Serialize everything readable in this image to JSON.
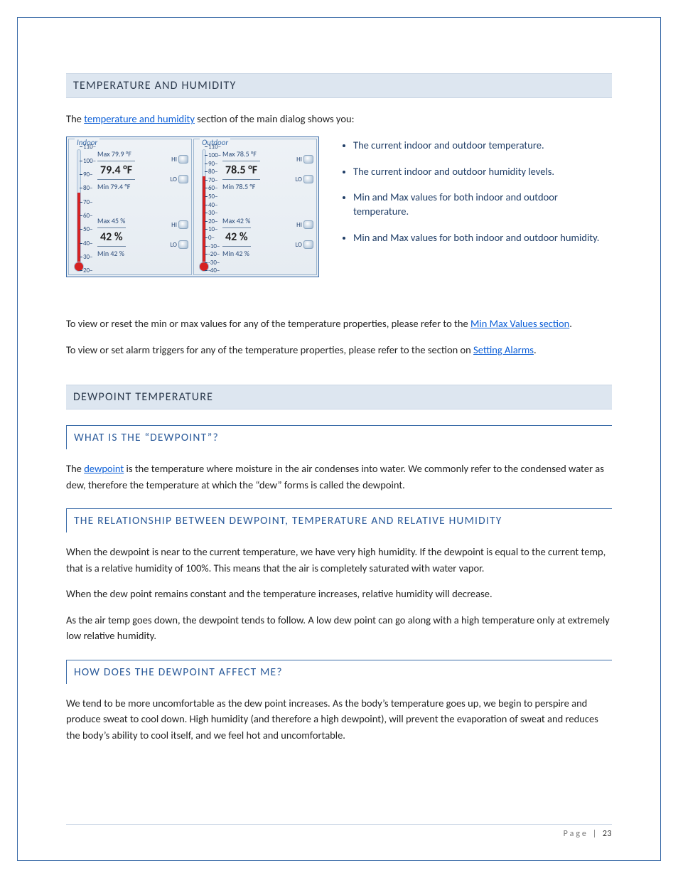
{
  "sections": {
    "th_title": "TEMPERATURE AND HUMIDITY",
    "th_intro_pre": "The ",
    "th_intro_link": "temperature and humidity",
    "th_intro_post": " section of the main dialog shows you:",
    "th_bullets": [
      "The current indoor and outdoor temperature.",
      "The current indoor and outdoor humidity levels.",
      "Min and Max values for both indoor and outdoor temperature.",
      "Min and Max values for both indoor and outdoor humidity."
    ],
    "th_view_reset_pre": "To view or reset the min or max values for any of the temperature properties, please refer to the ",
    "th_view_reset_link": "Min Max Values section",
    "th_view_reset_post": ".",
    "th_alarm_pre": "To view or set alarm triggers for any of the temperature properties, please refer to the section on ",
    "th_alarm_link": "Setting Alarms",
    "th_alarm_post": ".",
    "dp_title": "DEWPOINT TEMPERATURE",
    "dp_q1": "WHAT IS THE “DEWPOINT”?",
    "dp_q1_p_pre": "The ",
    "dp_q1_p_link": "dewpoint",
    "dp_q1_p_post": " is the temperature where moisture in the air condenses into water. We commonly refer to  the condensed water as dew, therefore the temperature at which the “dew” forms is called the dewpoint.",
    "dp_q2": "THE RELATIONSHIP BETWEEN DEWPOINT, TEMPERATURE AND RELATIVE HUMIDITY",
    "dp_q2_p1": "When the dewpoint is near to the current temperature, we have very high humidity. If the dewpoint is equal to the current temp, that is a relative humidity of 100%. This means that the air is completely saturated with water vapor.",
    "dp_q2_p2": "When the dew point remains constant and the temperature increases, relative humidity will decrease.",
    "dp_q2_p3": "As the air temp goes down, the dewpoint tends to follow. A low dew point can go along with a high temperature only at extremely low relative humidity.",
    "dp_q3": "HOW DOES THE DEWPOINT AFFECT ME?",
    "dp_q3_p1": "We tend to be more uncomfortable as the dew point increases. As the body’s temperature goes up, we begin to perspire and produce sweat to cool down. High humidity (and therefore a high dewpoint), will prevent the evaporation of sweat and reduces the body’s ability to cool itself, and we feel hot and uncomfortable."
  },
  "widget": {
    "indoor": {
      "title": "Indoor",
      "scale_ticks": [
        "110",
        "100",
        "90",
        "80",
        "70",
        "60",
        "50",
        "40",
        "30",
        "20"
      ],
      "fill_pct": 64,
      "temp_max": "Max 79.9 °F",
      "temp_val": "79.4 °F",
      "temp_min": "Min 79.4 °F",
      "hum_max": "Max 45 %",
      "hum_val": "42 %",
      "hum_min": "Min 42 %"
    },
    "outdoor": {
      "title": "Outdoor",
      "scale_ticks": [
        "110",
        "100",
        "90",
        "80",
        "70",
        "60",
        "50",
        "40",
        "30",
        "20",
        "10",
        "0",
        "-10",
        "-20",
        "-30",
        "-40"
      ],
      "fill_pct": 78,
      "temp_max": "Max 78.5 °F",
      "temp_val": "78.5 °F",
      "temp_min": "Min 78.5 °F",
      "hum_max": "Max 42 %",
      "hum_val": "42 %",
      "hum_min": "Min 42 %"
    },
    "hi": "HI",
    "lo": "LO"
  },
  "footer": {
    "label": "Page",
    "sep": " | ",
    "num": "23"
  },
  "colors": {
    "frame_border": "#3b6ca8",
    "section_bg": "#dde6f0",
    "section_text": "#2d3b4e",
    "subheading_text": "#2a5a9a",
    "link": "#0b5ed7",
    "bullet_text": "#1f3d66",
    "widget_border": "#3b6ca8",
    "therm_fill": "#d62222"
  }
}
